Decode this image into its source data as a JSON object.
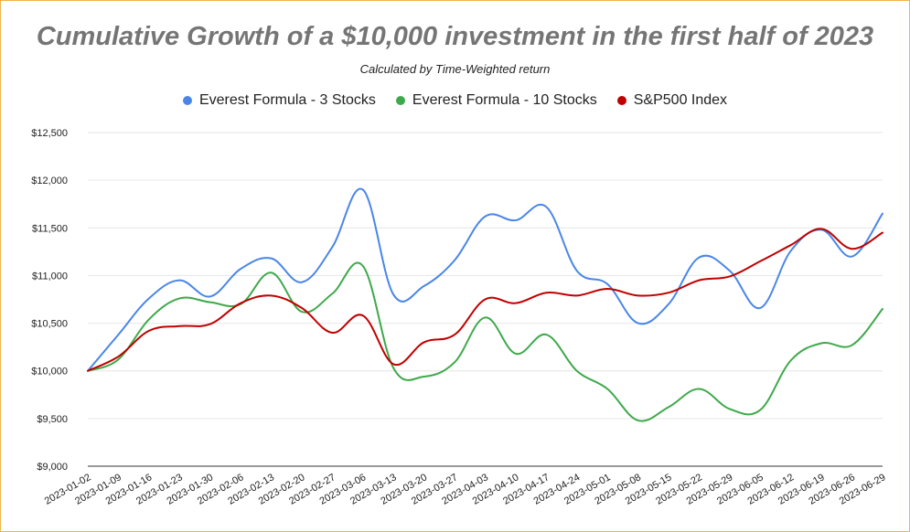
{
  "chart_data": {
    "type": "line",
    "title": "Cumulative Growth of a $10,000 investment in the first half of 2023",
    "subtitle": "Calculated by Time-Weighted return",
    "xlabel": "",
    "ylabel": "",
    "ylim": [
      9000,
      12500
    ],
    "yticks": [
      9000,
      9500,
      10000,
      10500,
      11000,
      11500,
      12000,
      12500
    ],
    "ytick_labels": [
      "$9,000",
      "$9,500",
      "$10,000",
      "$10,500",
      "$11,000",
      "$11,500",
      "$12,000",
      "$12,500"
    ],
    "grid": true,
    "legend_position": "top",
    "categories": [
      "2023-01-02",
      "2023-01-09",
      "2023-01-16",
      "2023-01-23",
      "2023-01-30",
      "2023-02-06",
      "2023-02-13",
      "2023-02-20",
      "2023-02-27",
      "2023-03-06",
      "2023-03-13",
      "2023-03-20",
      "2023-03-27",
      "2023-04-03",
      "2023-04-10",
      "2023-04-17",
      "2023-04-24",
      "2023-05-01",
      "2023-05-08",
      "2023-05-15",
      "2023-05-22",
      "2023-05-29",
      "2023-06-05",
      "2023-06-12",
      "2023-06-19",
      "2023-06-26",
      "2023-06-29"
    ],
    "series": [
      {
        "name": "Everest Formula - 3 Stocks",
        "color": "#4a86e8",
        "values": [
          10000,
          10380,
          10760,
          10950,
          10780,
          11070,
          11180,
          10930,
          11300,
          11900,
          10800,
          10890,
          11160,
          11620,
          11580,
          11720,
          11050,
          10910,
          10500,
          10700,
          11190,
          11050,
          10660,
          11260,
          11480,
          11200,
          11650
        ]
      },
      {
        "name": "Everest Formula - 10 Stocks",
        "color": "#3ea94a",
        "values": [
          10000,
          10120,
          10540,
          10760,
          10720,
          10700,
          11030,
          10620,
          10810,
          11100,
          10030,
          9940,
          10090,
          10560,
          10180,
          10380,
          10000,
          9810,
          9480,
          9620,
          9810,
          9600,
          9590,
          10110,
          10290,
          10270,
          10650
        ]
      },
      {
        "name": "S&P500 Index",
        "color": "#c00000",
        "values": [
          10000,
          10150,
          10420,
          10470,
          10490,
          10710,
          10790,
          10660,
          10400,
          10580,
          10070,
          10300,
          10380,
          10750,
          10710,
          10820,
          10790,
          10860,
          10790,
          10820,
          10950,
          10990,
          11150,
          11320,
          11490,
          11280,
          11450
        ]
      }
    ]
  }
}
